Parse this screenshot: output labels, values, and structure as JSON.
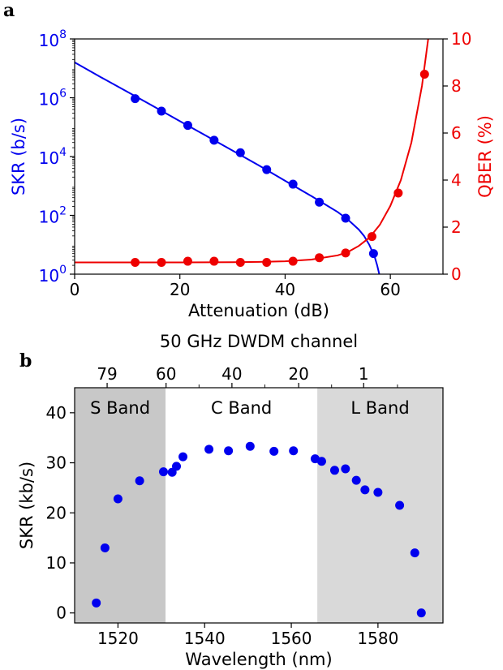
{
  "chart_data": [
    {
      "panel_label": "a",
      "type": "line",
      "xlabel": "Attenuation (dB)",
      "xlim": [
        0,
        70
      ],
      "x_ticks": [
        0,
        20,
        40,
        60
      ],
      "grid": false,
      "left_axis": {
        "label": "SKR (b/s)",
        "scale": "log",
        "ylim": [
          1,
          100000000
        ],
        "ticks": [
          {
            "base": "10",
            "exp": "0",
            "value": 1
          },
          {
            "base": "10",
            "exp": "2",
            "value": 100
          },
          {
            "base": "10",
            "exp": "4",
            "value": 10000
          },
          {
            "base": "10",
            "exp": "6",
            "value": 1000000
          },
          {
            "base": "10",
            "exp": "8",
            "value": 100000000
          }
        ],
        "color": "#0000ee"
      },
      "right_axis": {
        "label": "QBER (%)",
        "scale": "linear",
        "ylim": [
          0,
          10
        ],
        "ticks": [
          "0",
          "2",
          "4",
          "6",
          "8",
          "10"
        ],
        "color": "#ee0000"
      },
      "series": [
        {
          "axis": "left",
          "kind": "scatter",
          "color": "#0000ee",
          "x": [
            11.5,
            16.5,
            21.5,
            26.5,
            31.5,
            36.5,
            41.5,
            46.5,
            51.5,
            56.8
          ],
          "y": [
            930000,
            350000,
            115000,
            36000,
            13500,
            3600,
            1150,
            280,
            80,
            5
          ]
        },
        {
          "axis": "left",
          "kind": "fit",
          "color": "#0000ee",
          "x": [
            0,
            5,
            10,
            15,
            20,
            25,
            30,
            35,
            40,
            45,
            50,
            52,
            54,
            55,
            56,
            57,
            57.5,
            57.9
          ],
          "y": [
            16000000,
            5000000,
            1600000,
            510000,
            160000,
            51000,
            16000,
            5000,
            1500,
            450,
            130,
            70,
            33,
            20,
            10,
            4,
            2,
            1
          ]
        },
        {
          "axis": "right",
          "kind": "scatter",
          "color": "#ee0000",
          "x": [
            11.5,
            16.5,
            21.5,
            26.5,
            31.5,
            36.5,
            41.5,
            46.5,
            51.5,
            56.5,
            61.5,
            66.5
          ],
          "y": [
            0.5,
            0.5,
            0.55,
            0.55,
            0.5,
            0.5,
            0.55,
            0.7,
            0.9,
            1.6,
            3.45,
            8.5
          ]
        },
        {
          "axis": "right",
          "kind": "fit",
          "color": "#ee0000",
          "x": [
            0,
            10,
            20,
            30,
            35,
            40,
            45,
            50,
            52,
            54,
            56,
            58,
            60,
            62,
            64,
            66,
            67.2
          ],
          "y": [
            0.5,
            0.5,
            0.5,
            0.51,
            0.52,
            0.55,
            0.62,
            0.8,
            0.95,
            1.2,
            1.55,
            2.1,
            2.9,
            4.0,
            5.6,
            8.0,
            10.0
          ]
        }
      ]
    },
    {
      "panel_label": "b",
      "type": "scatter",
      "title": "50 GHz DWDM channel",
      "xlabel": "Wavelength (nm)",
      "ylabel": "SKR (kb/s)",
      "xlim": [
        1510,
        1595
      ],
      "ylim": [
        -2,
        45
      ],
      "x_ticks": [
        "1520",
        "1540",
        "1560",
        "1580"
      ],
      "y_ticks": [
        "0",
        "10",
        "20",
        "30",
        "40"
      ],
      "top_axis": {
        "ticks": [
          {
            "label": "79",
            "wavelength": 1517.5
          },
          {
            "label": "60",
            "wavelength": 1531.1
          },
          {
            "label": "40",
            "wavelength": 1546.3
          },
          {
            "label": "20",
            "wavelength": 1561.7
          },
          {
            "label": "1",
            "wavelength": 1576.7
          }
        ],
        "minor_ticks": [
          1538.7,
          1553.9,
          1569.3,
          1584.5
        ]
      },
      "bands": [
        {
          "label": "S Band",
          "from": 1510,
          "to": 1531,
          "color": "#c8c8c8"
        },
        {
          "label": "C Band",
          "from": 1531,
          "to": 1566,
          "color": "#ffffff"
        },
        {
          "label": "L Band",
          "from": 1566,
          "to": 1595,
          "color": "#d9d9d9"
        }
      ],
      "grid": false,
      "series": [
        {
          "color": "#0000ee",
          "x": [
            1515,
            1517,
            1520,
            1525,
            1530.5,
            1532.5,
            1533.5,
            1535,
            1541,
            1545.5,
            1550.5,
            1556,
            1560.5,
            1565.5,
            1567,
            1570,
            1572.5,
            1575,
            1577,
            1580,
            1585,
            1588.5,
            1590
          ],
          "y": [
            2,
            13,
            22.8,
            26.4,
            28.2,
            28.1,
            29.3,
            31.2,
            32.7,
            32.4,
            33.3,
            32.3,
            32.4,
            30.8,
            30.3,
            28.5,
            28.8,
            26.5,
            24.6,
            24.1,
            21.5,
            12,
            0
          ]
        }
      ]
    }
  ]
}
